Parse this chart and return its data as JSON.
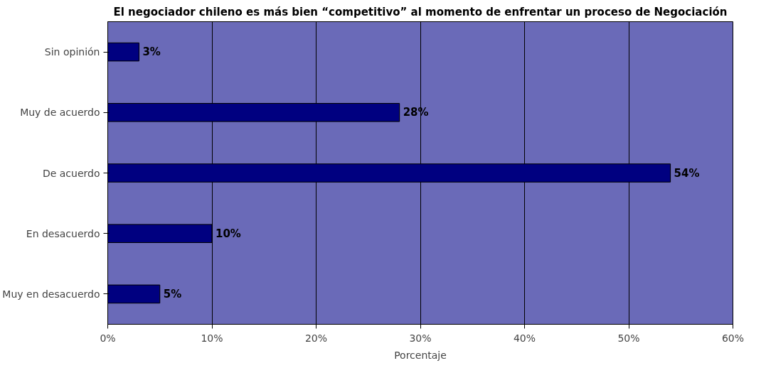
{
  "chart_data": {
    "type": "bar",
    "orientation": "horizontal",
    "title": "El negociador chileno es más bien “competitivo” al momento de enfrentar un proceso de Negociación",
    "xlabel": "Porcentaje",
    "categories": [
      "Sin opinión",
      "Muy de acuerdo",
      "De acuerdo",
      "En desacuerdo",
      "Muy en desacuerdo"
    ],
    "values": [
      3,
      28,
      54,
      10,
      5
    ],
    "value_labels": [
      "3%",
      "28%",
      "54%",
      "10%",
      "5%"
    ],
    "color": "#000080",
    "xlim": [
      0,
      60
    ],
    "xticks": [
      {
        "value": 0,
        "label": "0%"
      },
      {
        "value": 10,
        "label": "10%"
      },
      {
        "value": 20,
        "label": "20%"
      },
      {
        "value": 30,
        "label": "30%"
      },
      {
        "value": 40,
        "label": "40%"
      },
      {
        "value": 50,
        "label": "50%"
      },
      {
        "value": 60,
        "label": "60%"
      }
    ],
    "grid": "x"
  }
}
